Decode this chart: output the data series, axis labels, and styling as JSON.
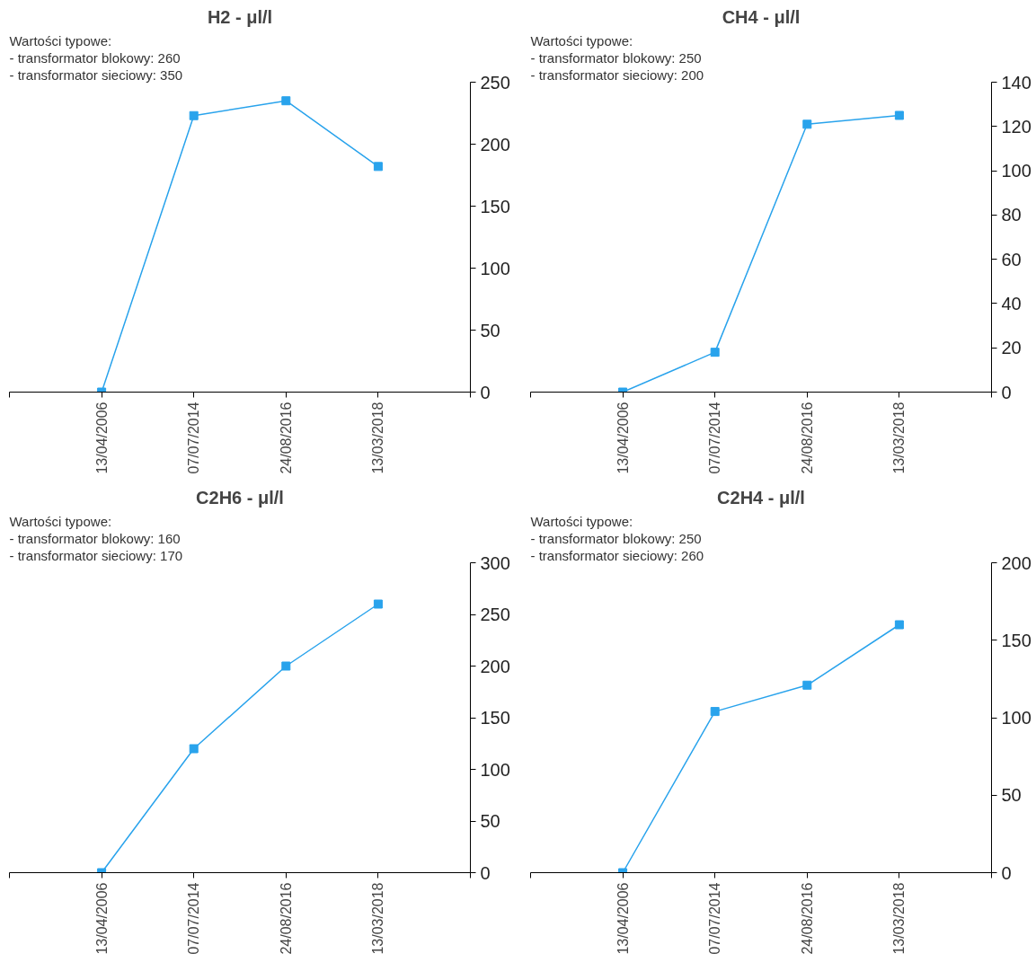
{
  "chart_data": [
    {
      "type": "line",
      "title": "H2 - μl/l",
      "annotations": [
        "Wartości typowe:",
        "- transformator blokowy: 260",
        "- transformator sieciowy: 350"
      ],
      "categories": [
        "13/04/2006",
        "07/07/2014",
        "24/08/2016",
        "13/03/2018"
      ],
      "values": [
        0,
        223,
        235,
        182
      ],
      "color": "#29a3ec",
      "ylim": [
        0,
        250
      ],
      "yticks": [
        0,
        50,
        100,
        150,
        200,
        250
      ],
      "grid": false,
      "legend": false,
      "marker": "square",
      "line_style": "solid"
    },
    {
      "type": "line",
      "title": "CH4 - μl/l",
      "annotations": [
        "Wartości typowe:",
        "- transformator blokowy: 250",
        "- transformator sieciowy: 200"
      ],
      "categories": [
        "13/04/2006",
        "07/07/2014",
        "24/08/2016",
        "13/03/2018"
      ],
      "values": [
        0,
        18,
        121,
        125
      ],
      "color": "#29a3ec",
      "ylim": [
        0,
        140
      ],
      "yticks": [
        0,
        20,
        40,
        60,
        80,
        100,
        120,
        140
      ],
      "grid": false,
      "legend": false,
      "marker": "square",
      "line_style": "solid"
    },
    {
      "type": "line",
      "title": "C2H6 - μl/l",
      "annotations": [
        "Wartości typowe:",
        "- transformator blokowy: 160",
        "- transformator sieciowy: 170"
      ],
      "categories": [
        "13/04/2006",
        "07/07/2014",
        "24/08/2016",
        "13/03/2018"
      ],
      "values": [
        0,
        120,
        200,
        260
      ],
      "color": "#29a3ec",
      "ylim": [
        0,
        300
      ],
      "yticks": [
        0,
        50,
        100,
        150,
        200,
        250,
        300
      ],
      "grid": false,
      "legend": false,
      "marker": "square",
      "line_style": "solid"
    },
    {
      "type": "line",
      "title": "C2H4 - μl/l",
      "annotations": [
        "Wartości typowe:",
        "- transformator blokowy: 250",
        "- transformator sieciowy: 260"
      ],
      "categories": [
        "13/04/2006",
        "07/07/2014",
        "24/08/2016",
        "13/03/2018"
      ],
      "values": [
        0,
        104,
        121,
        160
      ],
      "color": "#29a3ec",
      "ylim": [
        0,
        200
      ],
      "yticks": [
        0,
        50,
        100,
        150,
        200
      ],
      "grid": false,
      "legend": false,
      "marker": "square",
      "line_style": "solid"
    }
  ]
}
